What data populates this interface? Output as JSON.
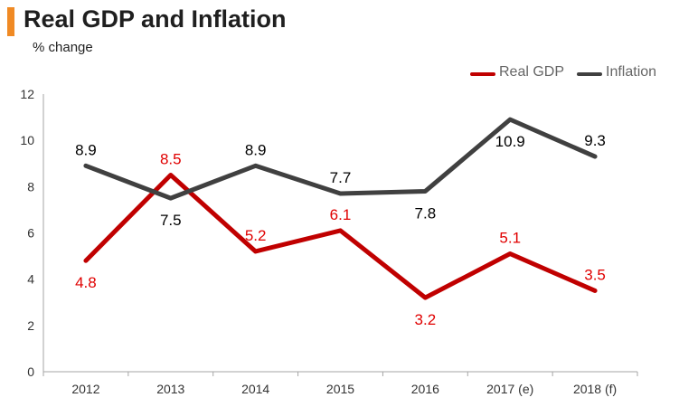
{
  "header": {
    "title": "Real GDP and Inflation",
    "subtitle": "% change"
  },
  "colors": {
    "accent": "#f08a24",
    "real_gdp": "#c00000",
    "real_gdp_label": "#e00000",
    "inflation": "#404040",
    "inflation_label": "#000000",
    "axis": "#a6a6a6"
  },
  "legend": {
    "items": [
      "Real GDP",
      "Inflation"
    ],
    "position": "top-right"
  },
  "chart_data": {
    "type": "line",
    "title": "Real GDP and Inflation",
    "subtitle": "% change",
    "xlabel": "",
    "ylabel": "",
    "categories": [
      "2012",
      "2013",
      "2014",
      "2015",
      "2016",
      "2017 (e)",
      "2018 (f)"
    ],
    "ylim": [
      0,
      12
    ],
    "yticks": [
      "0",
      "2",
      "4",
      "6",
      "8",
      "10",
      "12"
    ],
    "grid": false,
    "legend_position": "top-right",
    "series": [
      {
        "name": "Real GDP",
        "values": [
          4.8,
          8.5,
          5.2,
          6.1,
          3.2,
          5.1,
          3.5
        ],
        "labels": [
          "4.8",
          "8.5",
          "5.2",
          "6.1",
          "3.2",
          "5.1",
          "3.5"
        ]
      },
      {
        "name": "Inflation",
        "values": [
          8.9,
          7.5,
          8.9,
          7.7,
          7.8,
          10.9,
          9.3
        ],
        "labels": [
          "8.9",
          "7.5",
          "8.9",
          "7.7",
          "7.8",
          "10.9",
          "9.3"
        ]
      }
    ]
  }
}
